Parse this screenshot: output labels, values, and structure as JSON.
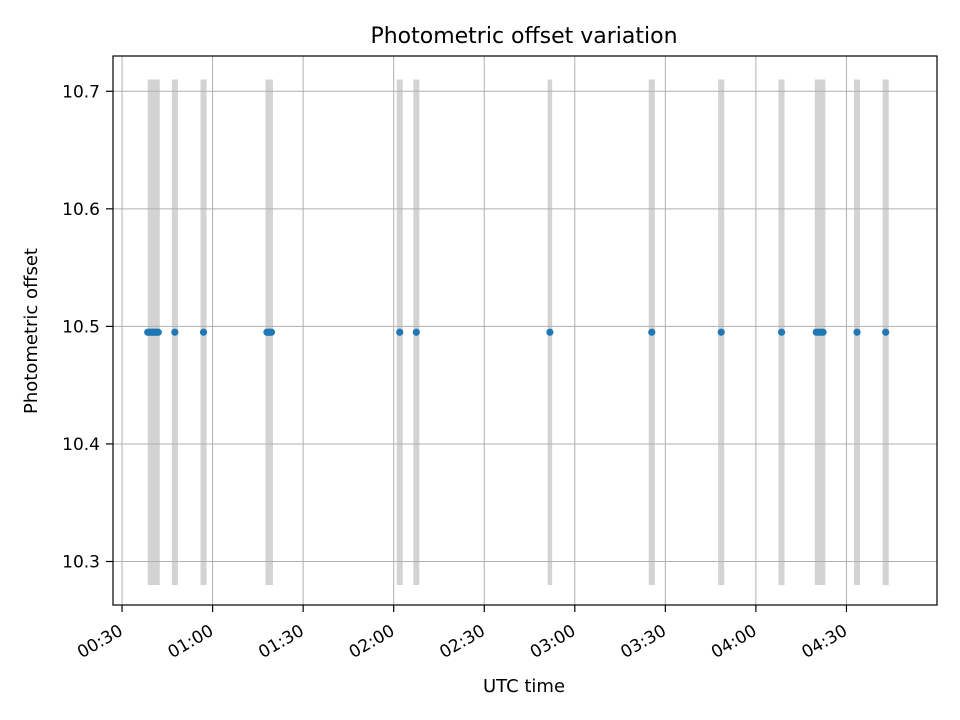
{
  "chart_data": {
    "type": "scatter",
    "title": "Photometric offset variation",
    "xlabel": "UTC time",
    "ylabel": "Photometric offset",
    "x_ticks": [
      "00:30",
      "01:00",
      "01:30",
      "02:00",
      "02:30",
      "03:00",
      "03:30",
      "04:00",
      "04:30"
    ],
    "y_ticks": [
      "10.3",
      "10.4",
      "10.5",
      "10.6",
      "10.7"
    ],
    "xlim": [
      "00:27",
      "05:00"
    ],
    "ylim": [
      10.263,
      10.73
    ],
    "grid": true,
    "colors": {
      "points": "#1f77b4",
      "bands": "#d3d3d3",
      "grid": "#b0b0b0",
      "axes": "#000000"
    },
    "bands": {
      "y_range": [
        10.28,
        10.71
      ],
      "intervals": [
        [
          "00:38:30",
          "00:42:30"
        ],
        [
          "00:46:30",
          "00:48:30"
        ],
        [
          "00:56:00",
          "00:58:00"
        ],
        [
          "01:17:30",
          "01:20:00"
        ],
        [
          "02:01:00",
          "02:03:00"
        ],
        [
          "02:06:30",
          "02:08:30"
        ],
        [
          "02:51:00",
          "02:52:30"
        ],
        [
          "03:24:30",
          "03:26:30"
        ],
        [
          "03:47:30",
          "03:49:30"
        ],
        [
          "04:07:30",
          "04:09:30"
        ],
        [
          "04:19:30",
          "04:23:00"
        ],
        [
          "04:32:30",
          "04:34:30"
        ],
        [
          "04:42:00",
          "04:44:00"
        ]
      ]
    },
    "points": [
      {
        "x": "00:38:30",
        "y": 10.495
      },
      {
        "x": "00:39:00",
        "y": 10.495
      },
      {
        "x": "00:39:30",
        "y": 10.495
      },
      {
        "x": "00:40:00",
        "y": 10.495
      },
      {
        "x": "00:40:30",
        "y": 10.495
      },
      {
        "x": "00:41:00",
        "y": 10.495
      },
      {
        "x": "00:41:30",
        "y": 10.495
      },
      {
        "x": "00:42:00",
        "y": 10.495
      },
      {
        "x": "00:47:30",
        "y": 10.495
      },
      {
        "x": "00:57:00",
        "y": 10.495
      },
      {
        "x": "01:18:00",
        "y": 10.495
      },
      {
        "x": "01:18:30",
        "y": 10.495
      },
      {
        "x": "01:19:00",
        "y": 10.495
      },
      {
        "x": "01:19:30",
        "y": 10.495
      },
      {
        "x": "02:02:00",
        "y": 10.495
      },
      {
        "x": "02:07:30",
        "y": 10.495
      },
      {
        "x": "02:51:45",
        "y": 10.495
      },
      {
        "x": "03:25:30",
        "y": 10.495
      },
      {
        "x": "03:48:30",
        "y": 10.495
      },
      {
        "x": "04:08:30",
        "y": 10.495
      },
      {
        "x": "04:20:00",
        "y": 10.495
      },
      {
        "x": "04:20:45",
        "y": 10.495
      },
      {
        "x": "04:21:30",
        "y": 10.495
      },
      {
        "x": "04:22:15",
        "y": 10.495
      },
      {
        "x": "04:33:30",
        "y": 10.495
      },
      {
        "x": "04:43:00",
        "y": 10.495
      }
    ]
  }
}
